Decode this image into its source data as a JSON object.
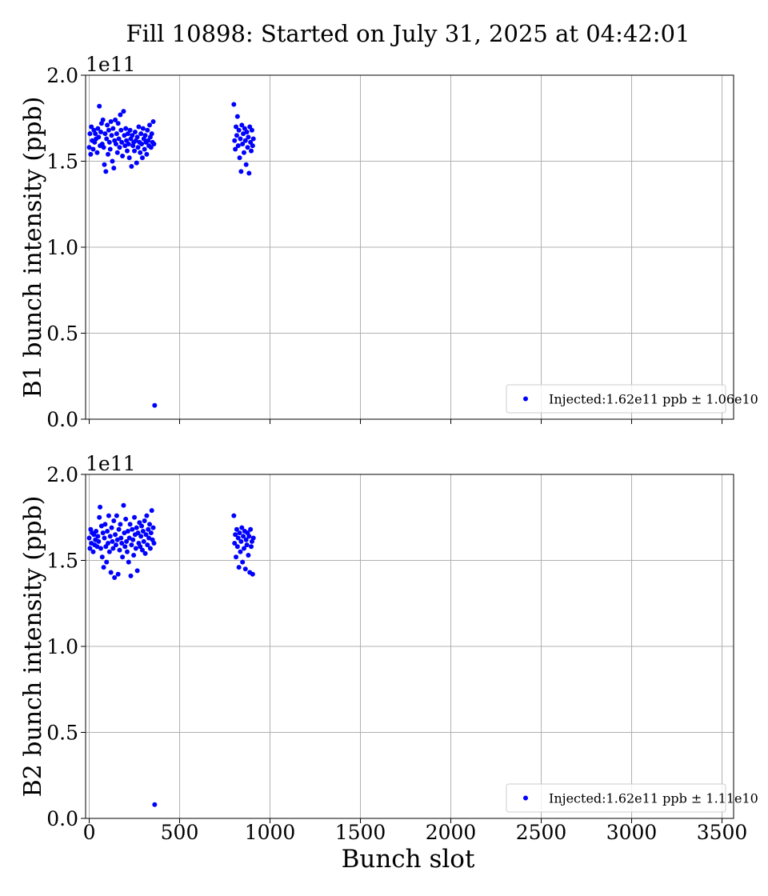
{
  "title": "Fill 10898: Started on July 31, 2025 at 04:42:01",
  "xlabel": "Bunch slot",
  "colors": {
    "points": "#0000ff",
    "grid": "#b0b0b0"
  },
  "chart_data": [
    {
      "type": "scatter",
      "ylabel": "B1 bunch intensity (ppb)",
      "y_multiplier_label": "1e11",
      "xlim": [
        -20,
        3564
      ],
      "ylim": [
        0.0,
        2.0
      ],
      "x_ticks": [
        0,
        500,
        1000,
        1500,
        2000,
        2500,
        3000,
        3500
      ],
      "x_tick_labels": [],
      "y_ticks": [
        0.0,
        0.5,
        1.0,
        1.5,
        2.0
      ],
      "y_tick_labels": [
        "0.0",
        "0.5",
        "1.0",
        "1.5",
        "2.0"
      ],
      "grid": true,
      "legend_position": "lower-right",
      "series": [
        {
          "name": "Injected:1.62e11 ppb ± 1.06e10",
          "x": [
            0,
            4,
            8,
            12,
            16,
            22,
            26,
            30,
            34,
            38,
            44,
            48,
            52,
            56,
            60,
            64,
            68,
            72,
            76,
            80,
            84,
            88,
            92,
            96,
            100,
            104,
            108,
            112,
            116,
            120,
            124,
            128,
            132,
            136,
            140,
            144,
            148,
            152,
            156,
            160,
            164,
            168,
            172,
            176,
            180,
            184,
            190,
            194,
            198,
            202,
            206,
            210,
            214,
            218,
            222,
            226,
            230,
            234,
            238,
            242,
            246,
            250,
            254,
            258,
            262,
            266,
            270,
            274,
            278,
            282,
            286,
            290,
            294,
            298,
            302,
            306,
            310,
            314,
            318,
            322,
            326,
            330,
            334,
            338,
            342,
            346,
            350,
            354,
            358,
            362,
            800,
            804,
            808,
            812,
            816,
            820,
            824,
            828,
            832,
            836,
            840,
            844,
            848,
            852,
            856,
            860,
            864,
            868,
            872,
            876,
            880,
            884,
            888,
            892,
            896,
            900,
            904,
            908
          ],
          "y": [
            1.58,
            1.66,
            1.54,
            1.7,
            1.62,
            1.57,
            1.68,
            1.61,
            1.66,
            1.63,
            1.55,
            1.69,
            1.64,
            1.82,
            1.59,
            1.67,
            1.72,
            1.6,
            1.74,
            1.58,
            1.48,
            1.66,
            1.44,
            1.63,
            1.71,
            1.54,
            1.68,
            1.61,
            1.57,
            1.73,
            1.65,
            1.5,
            1.69,
            1.46,
            1.62,
            1.74,
            1.6,
            1.66,
            1.55,
            1.72,
            1.63,
            1.58,
            1.77,
            1.68,
            1.61,
            1.53,
            1.79,
            1.65,
            1.59,
            1.69,
            1.62,
            1.56,
            1.66,
            1.6,
            1.52,
            1.68,
            1.63,
            1.47,
            1.65,
            1.59,
            1.61,
            1.56,
            1.67,
            1.62,
            1.49,
            1.64,
            1.58,
            1.7,
            1.61,
            1.55,
            1.66,
            1.6,
            1.52,
            1.69,
            1.63,
            1.57,
            1.65,
            1.61,
            1.54,
            1.68,
            1.62,
            1.59,
            1.71,
            1.64,
            1.58,
            1.66,
            1.61,
            1.73,
            1.6,
            0.08,
            1.83,
            1.62,
            1.57,
            1.7,
            1.65,
            1.76,
            1.59,
            1.68,
            1.52,
            1.63,
            1.44,
            1.71,
            1.6,
            1.66,
            1.55,
            1.69,
            1.62,
            1.48,
            1.67,
            1.58,
            1.64,
            1.43,
            1.7,
            1.61,
            1.56,
            1.68,
            1.59,
            1.63
          ]
        }
      ]
    },
    {
      "type": "scatter",
      "ylabel": "B2 bunch intensity (ppb)",
      "y_multiplier_label": "1e11",
      "xlim": [
        -20,
        3564
      ],
      "ylim": [
        0.0,
        2.0
      ],
      "x_ticks": [
        0,
        500,
        1000,
        1500,
        2000,
        2500,
        3000,
        3500
      ],
      "x_tick_labels": [
        "0",
        "500",
        "1000",
        "1500",
        "2000",
        "2500",
        "3000",
        "3500"
      ],
      "y_ticks": [
        0.0,
        0.5,
        1.0,
        1.5,
        2.0
      ],
      "y_tick_labels": [
        "0.0",
        "0.5",
        "1.0",
        "1.5",
        "2.0"
      ],
      "grid": true,
      "legend_position": "lower-right",
      "series": [
        {
          "name": "Injected:1.62e11 ppb ± 1.11e10",
          "x": [
            0,
            4,
            8,
            12,
            16,
            22,
            26,
            30,
            34,
            38,
            44,
            48,
            52,
            56,
            60,
            64,
            68,
            72,
            76,
            80,
            84,
            88,
            92,
            96,
            100,
            104,
            108,
            112,
            116,
            120,
            124,
            128,
            132,
            136,
            140,
            144,
            148,
            152,
            156,
            160,
            164,
            168,
            172,
            176,
            180,
            184,
            190,
            194,
            198,
            202,
            206,
            210,
            214,
            218,
            222,
            226,
            230,
            234,
            238,
            242,
            246,
            250,
            254,
            258,
            262,
            266,
            270,
            274,
            278,
            282,
            286,
            290,
            294,
            298,
            302,
            306,
            310,
            314,
            318,
            322,
            326,
            330,
            334,
            338,
            342,
            346,
            350,
            354,
            358,
            362,
            800,
            804,
            808,
            812,
            816,
            820,
            824,
            828,
            832,
            836,
            840,
            844,
            848,
            852,
            856,
            860,
            864,
            868,
            872,
            876,
            880,
            884,
            888,
            892,
            896,
            900,
            904,
            908
          ],
          "y": [
            1.63,
            1.57,
            1.68,
            1.6,
            1.66,
            1.55,
            1.65,
            1.59,
            1.62,
            1.67,
            1.58,
            1.64,
            1.61,
            1.75,
            1.81,
            1.57,
            1.7,
            1.52,
            1.66,
            1.46,
            1.63,
            1.71,
            1.58,
            1.49,
            1.67,
            1.6,
            1.76,
            1.55,
            1.64,
            1.43,
            1.69,
            1.61,
            1.57,
            1.73,
            1.4,
            1.65,
            1.59,
            1.76,
            1.62,
            1.42,
            1.68,
            1.56,
            1.71,
            1.63,
            1.6,
            1.52,
            1.82,
            1.66,
            1.58,
            1.74,
            1.61,
            1.55,
            1.67,
            1.49,
            1.63,
            1.71,
            1.41,
            1.59,
            1.68,
            1.62,
            1.53,
            1.75,
            1.65,
            1.57,
            1.69,
            1.44,
            1.66,
            1.6,
            1.72,
            1.58,
            1.64,
            1.7,
            1.56,
            1.67,
            1.61,
            1.73,
            1.54,
            1.65,
            1.76,
            1.59,
            1.68,
            1.63,
            1.71,
            1.57,
            1.66,
            1.79,
            1.62,
            1.69,
            1.6,
            0.08,
            1.76,
            1.6,
            1.65,
            1.52,
            1.68,
            1.58,
            1.63,
            1.46,
            1.66,
            1.55,
            1.61,
            1.69,
            1.49,
            1.64,
            1.57,
            1.67,
            1.45,
            1.62,
            1.59,
            1.66,
            1.53,
            1.64,
            1.43,
            1.68,
            1.58,
            1.61,
            1.42,
            1.63
          ]
        }
      ]
    }
  ]
}
